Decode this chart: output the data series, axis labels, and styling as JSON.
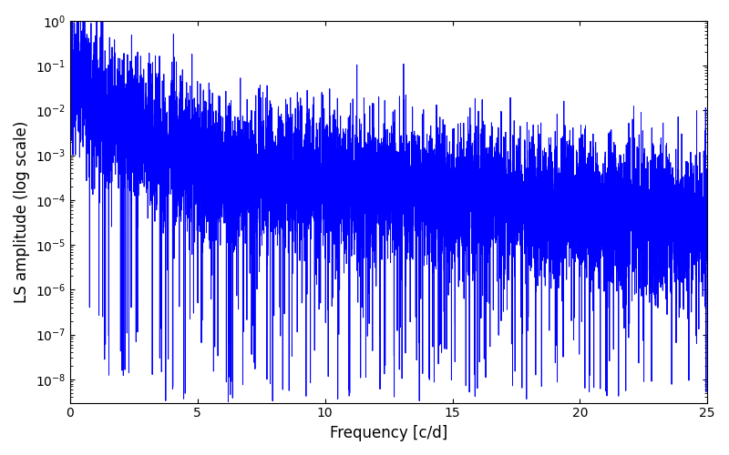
{
  "title": "",
  "xlabel": "Frequency [c/d]",
  "ylabel": "LS amplitude (log scale)",
  "xlim": [
    0,
    25
  ],
  "ylim": [
    3e-09,
    1.0
  ],
  "line_color": "#0000ff",
  "line_width": 0.7,
  "background_color": "#ffffff",
  "seed": 12345,
  "n_points": 8000,
  "freq_max": 25.0,
  "xlabel_fontsize": 12,
  "ylabel_fontsize": 12
}
